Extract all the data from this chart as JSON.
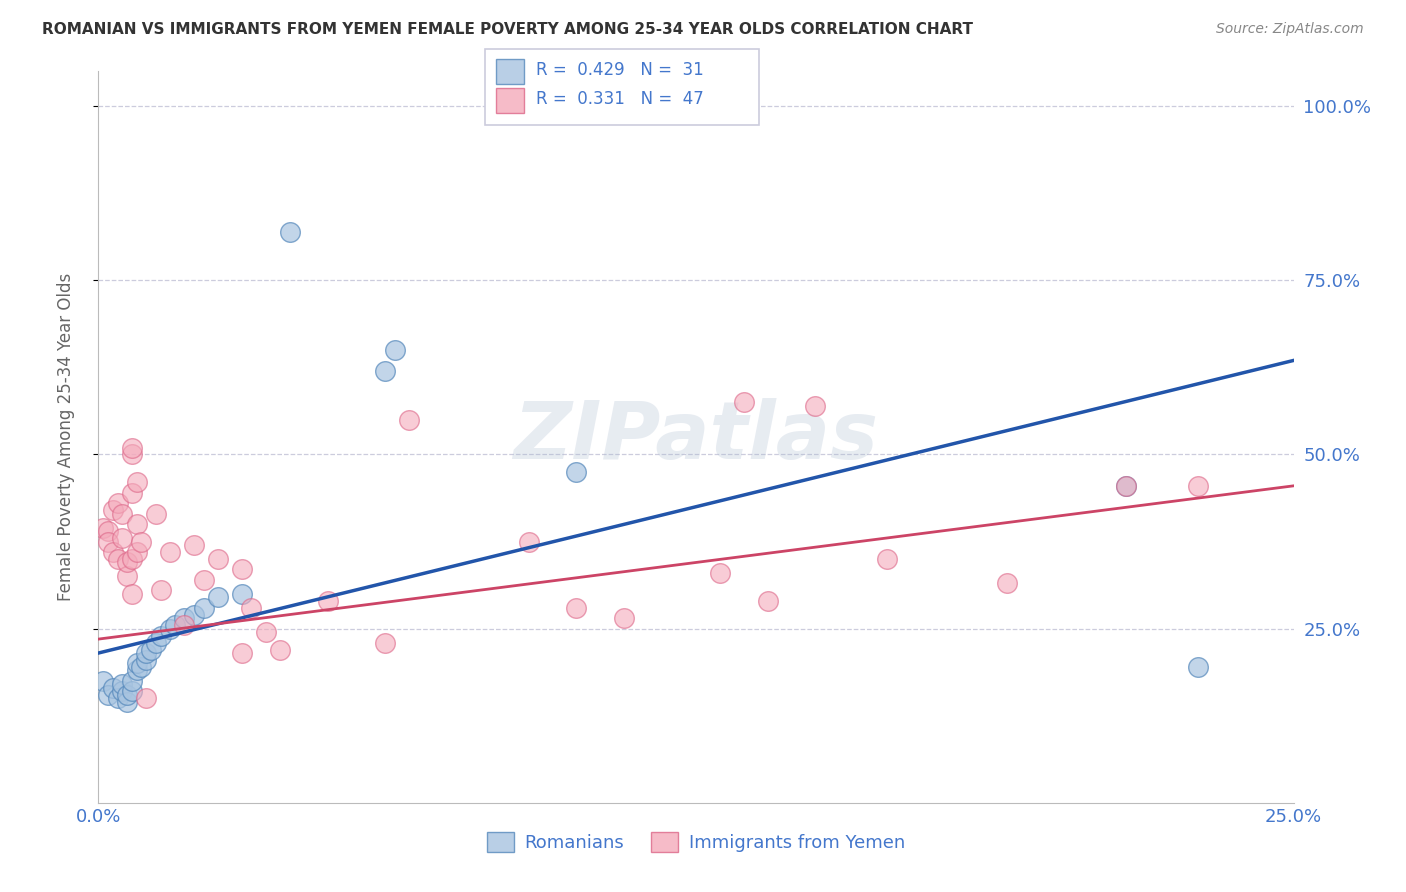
{
  "title": "ROMANIAN VS IMMIGRANTS FROM YEMEN FEMALE POVERTY AMONG 25-34 YEAR OLDS CORRELATION CHART",
  "source": "Source: ZipAtlas.com",
  "ylabel": "Female Poverty Among 25-34 Year Olds",
  "watermark": "ZIPatlas",
  "legend_blue_r": "0.429",
  "legend_blue_n": "31",
  "legend_pink_r": "0.331",
  "legend_pink_n": "47",
  "legend_blue_label": "Romanians",
  "legend_pink_label": "Immigrants from Yemen",
  "blue_color": "#A8C4E0",
  "pink_color": "#F4AABB",
  "blue_edge_color": "#5588BB",
  "pink_edge_color": "#DD6688",
  "blue_line_color": "#2255AA",
  "pink_line_color": "#CC4466",
  "background_color": "#FFFFFF",
  "grid_color": "#CCCCDD",
  "text_color": "#4477CC",
  "axis_label_color": "#666666",
  "title_color": "#333333",
  "source_color": "#888888",
  "right_ytick_color": "#4477CC",
  "xmin": 0.0,
  "xmax": 0.25,
  "ymin": 0.0,
  "ymax": 1.05,
  "blue_scatter": [
    [
      0.001,
      0.175
    ],
    [
      0.002,
      0.155
    ],
    [
      0.003,
      0.165
    ],
    [
      0.004,
      0.15
    ],
    [
      0.005,
      0.16
    ],
    [
      0.005,
      0.17
    ],
    [
      0.006,
      0.145
    ],
    [
      0.006,
      0.155
    ],
    [
      0.007,
      0.16
    ],
    [
      0.007,
      0.175
    ],
    [
      0.008,
      0.19
    ],
    [
      0.008,
      0.2
    ],
    [
      0.009,
      0.195
    ],
    [
      0.01,
      0.205
    ],
    [
      0.01,
      0.215
    ],
    [
      0.011,
      0.22
    ],
    [
      0.012,
      0.23
    ],
    [
      0.013,
      0.24
    ],
    [
      0.015,
      0.25
    ],
    [
      0.016,
      0.255
    ],
    [
      0.018,
      0.265
    ],
    [
      0.02,
      0.27
    ],
    [
      0.022,
      0.28
    ],
    [
      0.025,
      0.295
    ],
    [
      0.03,
      0.3
    ],
    [
      0.04,
      0.82
    ],
    [
      0.06,
      0.62
    ],
    [
      0.062,
      0.65
    ],
    [
      0.1,
      0.475
    ],
    [
      0.215,
      0.455
    ],
    [
      0.23,
      0.195
    ]
  ],
  "pink_scatter": [
    [
      0.001,
      0.395
    ],
    [
      0.002,
      0.39
    ],
    [
      0.002,
      0.375
    ],
    [
      0.003,
      0.36
    ],
    [
      0.003,
      0.42
    ],
    [
      0.004,
      0.35
    ],
    [
      0.004,
      0.43
    ],
    [
      0.005,
      0.38
    ],
    [
      0.005,
      0.415
    ],
    [
      0.006,
      0.325
    ],
    [
      0.006,
      0.345
    ],
    [
      0.007,
      0.3
    ],
    [
      0.007,
      0.35
    ],
    [
      0.007,
      0.445
    ],
    [
      0.007,
      0.5
    ],
    [
      0.007,
      0.51
    ],
    [
      0.008,
      0.46
    ],
    [
      0.008,
      0.36
    ],
    [
      0.008,
      0.4
    ],
    [
      0.009,
      0.375
    ],
    [
      0.01,
      0.15
    ],
    [
      0.012,
      0.415
    ],
    [
      0.013,
      0.305
    ],
    [
      0.015,
      0.36
    ],
    [
      0.018,
      0.255
    ],
    [
      0.02,
      0.37
    ],
    [
      0.022,
      0.32
    ],
    [
      0.025,
      0.35
    ],
    [
      0.03,
      0.215
    ],
    [
      0.03,
      0.335
    ],
    [
      0.032,
      0.28
    ],
    [
      0.035,
      0.245
    ],
    [
      0.038,
      0.22
    ],
    [
      0.048,
      0.29
    ],
    [
      0.06,
      0.23
    ],
    [
      0.065,
      0.55
    ],
    [
      0.09,
      0.375
    ],
    [
      0.1,
      0.28
    ],
    [
      0.11,
      0.265
    ],
    [
      0.13,
      0.33
    ],
    [
      0.135,
      0.575
    ],
    [
      0.14,
      0.29
    ],
    [
      0.15,
      0.57
    ],
    [
      0.165,
      0.35
    ],
    [
      0.19,
      0.315
    ],
    [
      0.215,
      0.455
    ],
    [
      0.23,
      0.455
    ]
  ],
  "blue_line_x": [
    0.0,
    0.25
  ],
  "blue_line_y": [
    0.215,
    0.635
  ],
  "pink_line_x": [
    0.0,
    0.25
  ],
  "pink_line_y": [
    0.235,
    0.455
  ]
}
